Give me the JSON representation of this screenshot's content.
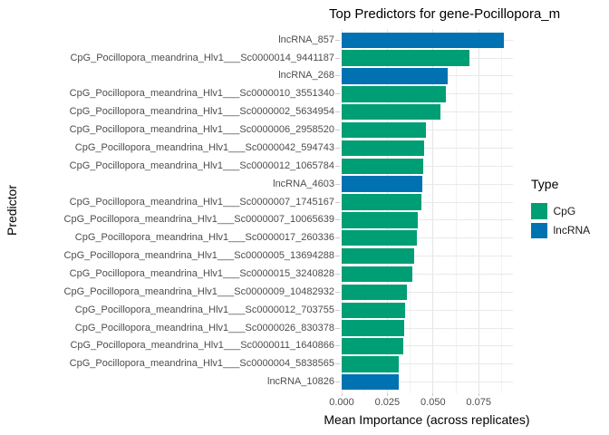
{
  "title": "Top Predictors for gene-Pocillopora_m",
  "axes": {
    "x_label": "Mean Importance (across replicates)",
    "y_label": "Predictor",
    "x_tick_labels": [
      "0.000",
      "0.025",
      "0.050",
      "0.075"
    ]
  },
  "legend": {
    "title": "Type",
    "items": [
      {
        "label": "CpG",
        "color": "#009E75"
      },
      {
        "label": "lncRNA",
        "color": "#0072B2"
      }
    ]
  },
  "colors": {
    "cpg": "#009E75",
    "lncrna": "#0072B2",
    "grid_major": "#e5e5e5",
    "grid_minor": "#f2f2f2",
    "axis_text": "#4d4d4d",
    "tick_mark": "#c9c9c9"
  },
  "chart_data": {
    "type": "bar",
    "orientation": "horizontal",
    "title": "Top Predictors for gene-Pocillopora_m",
    "xlabel": "Mean Importance (across replicates)",
    "ylabel": "Predictor",
    "xlim": [
      0,
      0.09375
    ],
    "x_tick_values": [
      0,
      0.025,
      0.05,
      0.075
    ],
    "x_minor_step": 0.0125,
    "grid": true,
    "legend_position": "right",
    "legend_title": "Type",
    "categories": [
      "lncRNA_857",
      "CpG_Pocillopora_meandrina_Hlv1___Sc0000014_9441187",
      "lncRNA_268",
      "CpG_Pocillopora_meandrina_Hlv1___Sc0000010_3551340",
      "CpG_Pocillopora_meandrina_Hlv1___Sc0000002_5634954",
      "CpG_Pocillopora_meandrina_Hlv1___Sc0000006_2958520",
      "CpG_Pocillopora_meandrina_Hlv1___Sc0000042_594743",
      "CpG_Pocillopora_meandrina_Hlv1___Sc0000012_1065784",
      "lncRNA_4603",
      "CpG_Pocillopora_meandrina_Hlv1___Sc0000007_1745167",
      "CpG_Pocillopora_meandrina_Hlv1___Sc0000007_10065639",
      "CpG_Pocillopora_meandrina_Hlv1___Sc0000017_260336",
      "CpG_Pocillopora_meandrina_Hlv1___Sc0000005_13694288",
      "CpG_Pocillopora_meandrina_Hlv1___Sc0000015_3240828",
      "CpG_Pocillopora_meandrina_Hlv1___Sc0000009_10482932",
      "CpG_Pocillopora_meandrina_Hlv1___Sc0000012_703755",
      "CpG_Pocillopora_meandrina_Hlv1___Sc0000026_830378",
      "CpG_Pocillopora_meandrina_Hlv1___Sc0000011_1640866",
      "CpG_Pocillopora_meandrina_Hlv1___Sc0000004_5838565",
      "lncRNA_10826"
    ],
    "values": [
      0.089,
      0.0699,
      0.0579,
      0.0569,
      0.0539,
      0.0463,
      0.045,
      0.0448,
      0.044,
      0.0436,
      0.0419,
      0.041,
      0.0399,
      0.0385,
      0.0356,
      0.0349,
      0.0341,
      0.0337,
      0.0312,
      0.0311
    ],
    "types": [
      "lncRNA",
      "CpG",
      "lncRNA",
      "CpG",
      "CpG",
      "CpG",
      "CpG",
      "CpG",
      "lncRNA",
      "CpG",
      "CpG",
      "CpG",
      "CpG",
      "CpG",
      "CpG",
      "CpG",
      "CpG",
      "CpG",
      "CpG",
      "lncRNA"
    ],
    "type_colors": {
      "CpG": "#009E75",
      "lncRNA": "#0072B2"
    }
  }
}
